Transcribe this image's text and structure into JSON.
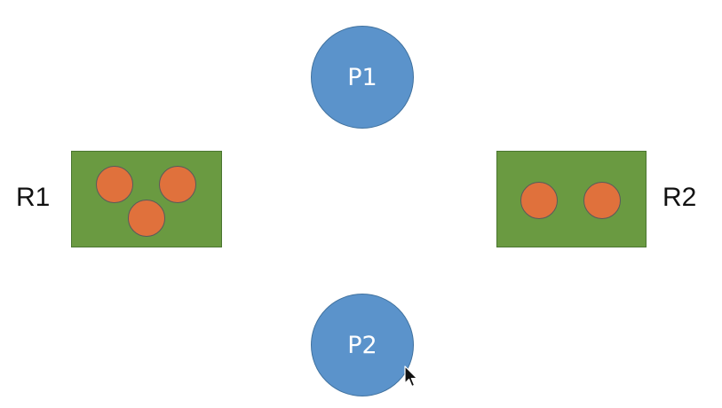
{
  "processes": [
    {
      "label": "P1"
    },
    {
      "label": "P2"
    }
  ],
  "resources": [
    {
      "label": "R1",
      "instances": 3
    },
    {
      "label": "R2",
      "instances": 2
    }
  ],
  "colors": {
    "process_fill": "#5b93cb",
    "resource_fill": "#6a9a41",
    "instance_fill": "#e0713c",
    "background": "#ffffff"
  },
  "icons": {
    "cursor": "mouse-pointer-icon"
  }
}
